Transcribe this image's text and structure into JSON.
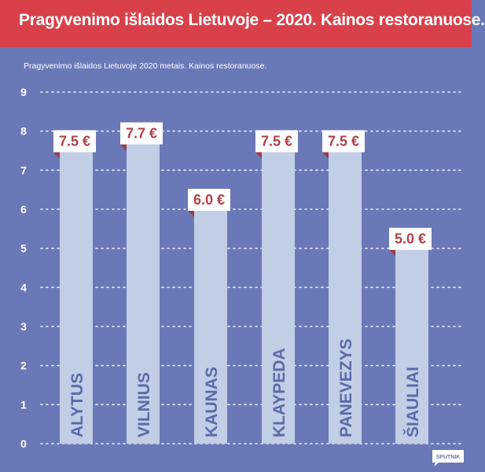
{
  "header": {
    "title": "Pragyvenimo išlaidos Lietuvoje – 2020. Kainos restoranuose.",
    "subtitle": "Pragyvenimo išlaidos Lietuvoje 2020 metais. Kainos restoranuose."
  },
  "logo": {
    "text": "SPUTNIK"
  },
  "colors": {
    "background": "#6b78b8",
    "header": "#d8404a",
    "bar": "#c2cde6",
    "label_box": "#ffffff",
    "label_text": "#b3404a",
    "city_text": "#5b6aa8",
    "grid": "#ffffff"
  },
  "chart_data": {
    "type": "bar",
    "categories": [
      "ALYTUS",
      "VILNIUS",
      "KAUNAS",
      "KLAYPEDA",
      "PANEVEZYS",
      "ŠIAULIAI"
    ],
    "values": [
      7.5,
      7.7,
      6.0,
      7.5,
      7.5,
      5.0
    ],
    "value_labels": [
      "7.5 €",
      "7.7 €",
      "6.0 €",
      "7.5 €",
      "7.5 €",
      "5.0 €"
    ],
    "yticks": [
      "0",
      "1",
      "2",
      "3",
      "4",
      "5",
      "6",
      "7",
      "8",
      "9"
    ],
    "ylim": [
      0,
      9
    ],
    "grid": true,
    "title": "",
    "xlabel": "",
    "ylabel": ""
  }
}
